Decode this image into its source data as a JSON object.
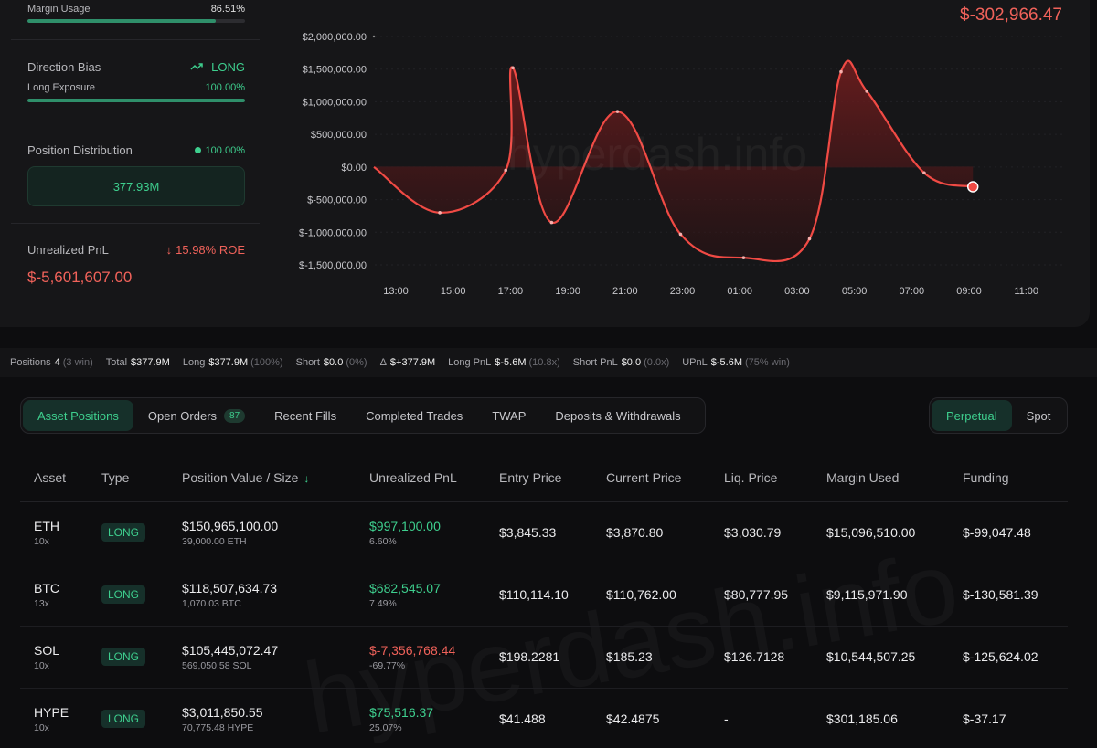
{
  "account": {
    "margin_usage": {
      "label": "Margin Usage",
      "value": "86.51%",
      "fraction": 0.8651
    },
    "direction_bias": {
      "label": "Direction Bias",
      "value": "LONG"
    },
    "long_exposure": {
      "label": "Long Exposure",
      "value": "100.00%",
      "fraction": 1.0
    },
    "position_distribution": {
      "label": "Position Distribution",
      "value": "100.00%",
      "box_value": "377.93M"
    },
    "unrealized_pnl": {
      "label": "Unrealized PnL",
      "roe": "15.98% ROE",
      "value": "$-5,601,607.00"
    }
  },
  "chart_data": {
    "type": "area",
    "current_value": "$-302,966.47",
    "watermark": "hyperdash.info",
    "y_ticks": [
      "$2,000,000.00",
      "$1,500,000.00",
      "$1,000,000.00",
      "$500,000.00",
      "$0.00",
      "$-500,000.00",
      "$-1,000,000.00",
      "$-1,500,000.00"
    ],
    "y_tick_values": [
      2000000,
      1500000,
      1000000,
      500000,
      0,
      -500000,
      -1000000,
      -1500000
    ],
    "x_ticks": [
      "13:00",
      "15:00",
      "17:00",
      "19:00",
      "21:00",
      "23:00",
      "01:00",
      "03:00",
      "05:00",
      "07:00",
      "09:00",
      "11:00"
    ],
    "ylim": [
      -1500000,
      2000000
    ],
    "x_hours": [
      0,
      2.3,
      4.6,
      4.85,
      6.2,
      8.5,
      10.7,
      12.9,
      15.2,
      16.3,
      17.2,
      19.2,
      20.9,
      22.4,
      23.5
    ],
    "values": [
      0,
      -700000,
      -50000,
      1520000,
      -850000,
      850000,
      -1030000,
      -1390000,
      -1100000,
      1460000,
      1160000,
      -90000,
      -302966.47,
      -302966.47,
      -302966.47
    ],
    "series": [
      {
        "values_note": ""
      }
    ],
    "colors": {
      "line": "#f04a44",
      "fill_top": "#7a1e1f",
      "fill_bottom": "#2a1214"
    },
    "grid": true
  },
  "summary": {
    "positions_label": "Positions",
    "positions": "4",
    "positions_win": "(3 win)",
    "total_label": "Total",
    "total": "$377.9M",
    "long_label": "Long",
    "long": "$377.9M",
    "long_pct": "(100%)",
    "short_label": "Short",
    "short": "$0.0",
    "short_pct": "(0%)",
    "delta_label": "Δ",
    "delta": "$+377.9M",
    "long_pnl_label": "Long PnL",
    "long_pnl": "$-5.6M",
    "long_pnl_x": "(10.8x)",
    "short_pnl_label": "Short PnL",
    "short_pnl": "$0.0",
    "short_pnl_x": "(0.0x)",
    "upnl_label": "UPnL",
    "upnl": "$-5.6M",
    "upnl_win": "(75% win)"
  },
  "tabs": [
    {
      "label": "Asset Positions",
      "active": true
    },
    {
      "label": "Open Orders",
      "count": "87"
    },
    {
      "label": "Recent Fills"
    },
    {
      "label": "Completed Trades"
    },
    {
      "label": "TWAP"
    },
    {
      "label": "Deposits & Withdrawals"
    }
  ],
  "market_toggle": {
    "perpetual": "Perpetual",
    "spot": "Spot"
  },
  "table": {
    "headers": [
      "Asset",
      "Type",
      "Position Value / Size",
      "Unrealized PnL",
      "Entry Price",
      "Current Price",
      "Liq. Price",
      "Margin Used",
      "Funding"
    ],
    "rows": [
      {
        "asset": "ETH",
        "lev": "10x",
        "type": "LONG",
        "value": "$150,965,100.00",
        "size": "39,000.00 ETH",
        "pnl": "$997,100.00",
        "pnl_pct": "6.60%",
        "pnl_positive": true,
        "entry": "$3,845.33",
        "current": "$3,870.80",
        "liq": "$3,030.79",
        "margin": "$15,096,510.00",
        "funding": "$-99,047.48"
      },
      {
        "asset": "BTC",
        "lev": "13x",
        "type": "LONG",
        "value": "$118,507,634.73",
        "size": "1,070.03 BTC",
        "pnl": "$682,545.07",
        "pnl_pct": "7.49%",
        "pnl_positive": true,
        "entry": "$110,114.10",
        "current": "$110,762.00",
        "liq": "$80,777.95",
        "margin": "$9,115,971.90",
        "funding": "$-130,581.39"
      },
      {
        "asset": "SOL",
        "lev": "10x",
        "type": "LONG",
        "value": "$105,445,072.47",
        "size": "569,050.58 SOL",
        "pnl": "$-7,356,768.44",
        "pnl_pct": "-69.77%",
        "pnl_positive": false,
        "entry": "$198.2281",
        "current": "$185.23",
        "liq": "$126.7128",
        "margin": "$10,544,507.25",
        "funding": "$-125,624.02"
      },
      {
        "asset": "HYPE",
        "lev": "10x",
        "type": "LONG",
        "value": "$3,011,850.55",
        "size": "70,775.48 HYPE",
        "pnl": "$75,516.37",
        "pnl_pct": "25.07%",
        "pnl_positive": true,
        "entry": "$41.488",
        "current": "$42.4875",
        "liq": "-",
        "margin": "$301,185.06",
        "funding": "$-37.17"
      }
    ]
  }
}
